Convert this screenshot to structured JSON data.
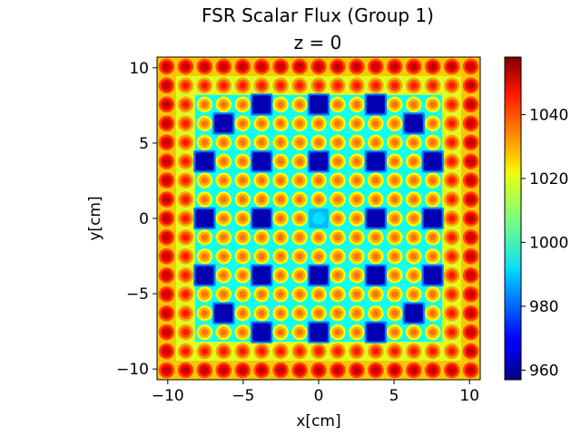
{
  "chart_data": {
    "type": "heatmap",
    "title": "FSR Scalar Flux (Group 1)",
    "subtitle": "z = 0",
    "xlabel": "x[cm]",
    "ylabel": "y[cm]",
    "xlim": [
      -10.71,
      10.71
    ],
    "ylim": [
      -10.71,
      10.71
    ],
    "x_ticks": [
      -10,
      -5,
      0,
      5,
      10
    ],
    "y_ticks": [
      -10,
      -5,
      0,
      5,
      10
    ],
    "x_tick_labels": [
      "−10",
      "−5",
      "0",
      "5",
      "10"
    ],
    "y_tick_labels": [
      "−10",
      "−5",
      "0",
      "5",
      "10"
    ],
    "lattice": {
      "size": 17,
      "pitch_cm": 1.26,
      "guide_tube_positions": [
        [
          2,
          5
        ],
        [
          2,
          8
        ],
        [
          2,
          11
        ],
        [
          3,
          3
        ],
        [
          3,
          13
        ],
        [
          5,
          2
        ],
        [
          5,
          5
        ],
        [
          5,
          8
        ],
        [
          5,
          11
        ],
        [
          5,
          14
        ],
        [
          8,
          2
        ],
        [
          8,
          5
        ],
        [
          8,
          11
        ],
        [
          8,
          14
        ],
        [
          11,
          2
        ],
        [
          11,
          5
        ],
        [
          11,
          8
        ],
        [
          11,
          11
        ],
        [
          11,
          14
        ],
        [
          13,
          3
        ],
        [
          13,
          13
        ],
        [
          14,
          5
        ],
        [
          14,
          8
        ],
        [
          14,
          11
        ]
      ],
      "instrument_tube_position": [
        8,
        8
      ]
    },
    "flux_values": {
      "fuel_pin_center": 1052,
      "fuel_pin_center_inner": 1034,
      "moderator_edge": 1026,
      "moderator_inner": 1008,
      "moderator_near_guide_tube": 996,
      "guide_tube": 962,
      "instrument_tube": 988
    },
    "colorbar": {
      "colormap": "jet",
      "vmin": 957,
      "vmax": 1058,
      "ticks": [
        960,
        980,
        1000,
        1020,
        1040
      ],
      "tick_labels": [
        "960",
        "980",
        "1000",
        "1020",
        "1040"
      ]
    }
  }
}
